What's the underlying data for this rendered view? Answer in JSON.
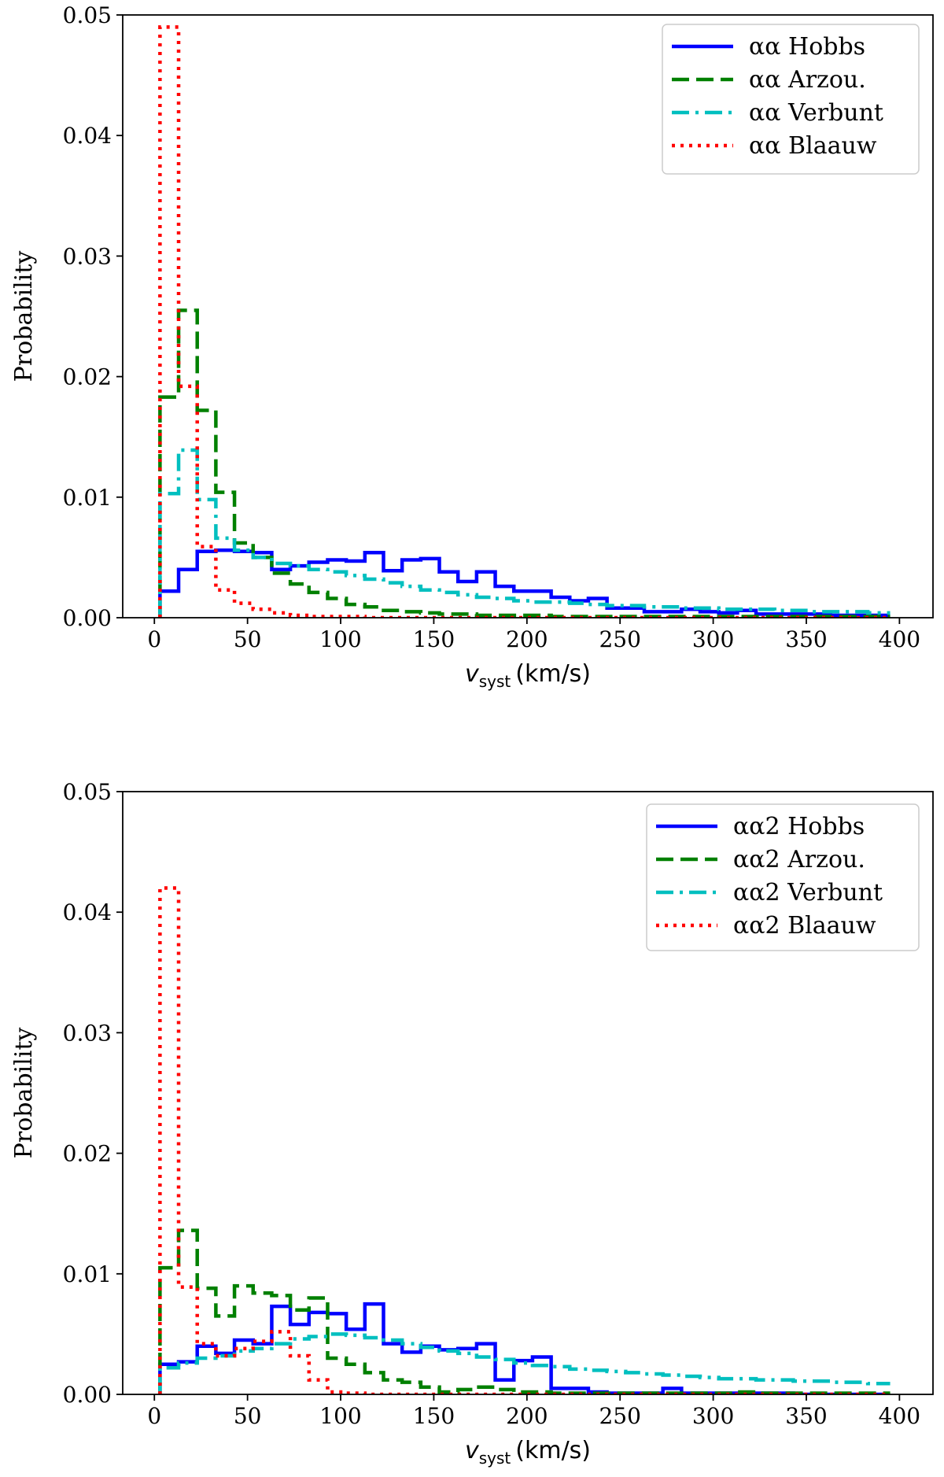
{
  "colors": {
    "hobbs": "#0000ff",
    "arzou": "#008000",
    "verbunt": "#00bfbf",
    "blaauw": "#ff0000"
  },
  "chart_data": [
    {
      "type": "histogram-step",
      "title": "",
      "xlabel": {
        "var": "v",
        "sub": "syst",
        "unit": "(km/s)"
      },
      "ylabel": "Probability",
      "xlim": [
        -17,
        418
      ],
      "ylim": [
        0,
        0.05
      ],
      "xticks": [
        0,
        50,
        100,
        150,
        200,
        250,
        300,
        350,
        400
      ],
      "yticks": [
        "0.00",
        "0.01",
        "0.02",
        "0.03",
        "0.04",
        "0.05"
      ],
      "legend_position": "top-right",
      "bin_edges": [
        3,
        13,
        23,
        33,
        43,
        53,
        63,
        73,
        83,
        93,
        103,
        113,
        123,
        133,
        143,
        153,
        163,
        173,
        183,
        193,
        203,
        213,
        223,
        233,
        243,
        253,
        263,
        273,
        283,
        293,
        303,
        313,
        323,
        333,
        343,
        353,
        363,
        373,
        383,
        395
      ],
      "series": [
        {
          "name": "αα Hobbs",
          "key": "hobbs",
          "style": "solid",
          "values": [
            0.0022,
            0.004,
            0.0055,
            0.0056,
            0.0055,
            0.0054,
            0.004,
            0.0043,
            0.0046,
            0.0048,
            0.0047,
            0.0054,
            0.0039,
            0.0048,
            0.0049,
            0.0038,
            0.003,
            0.0038,
            0.0026,
            0.0022,
            0.0022,
            0.0017,
            0.0014,
            0.0016,
            0.0008,
            0.0008,
            0.0005,
            0.0005,
            0.0007,
            0.0005,
            0.0004,
            0.0006,
            0.0003,
            0.0003,
            0.0003,
            0.0003,
            0.0002,
            0.0002,
            0.0002
          ]
        },
        {
          "name": "αα Arzou.",
          "key": "arzou",
          "style": "dashed",
          "values": [
            0.0183,
            0.0255,
            0.0172,
            0.0104,
            0.0062,
            0.005,
            0.0037,
            0.0028,
            0.0021,
            0.0016,
            0.0011,
            0.0009,
            0.0006,
            0.0005,
            0.0004,
            0.0003,
            0.0003,
            0.0002,
            0.0002,
            0.0002,
            0.0002,
            0.0001,
            0.0001,
            0.0001,
            0.0001,
            0.0001,
            0.0001,
            0.0001,
            0.0001,
            0.0001,
            0.0001,
            0.0001,
            0.0001,
            0.0001,
            0.0001,
            0.0001,
            0.0001,
            0.0001,
            0.0001
          ]
        },
        {
          "name": "αα Verbunt",
          "key": "verbunt",
          "style": "dashdot",
          "values": [
            0.0103,
            0.0139,
            0.0098,
            0.0066,
            0.0056,
            0.005,
            0.0045,
            0.0043,
            0.004,
            0.0038,
            0.0035,
            0.0032,
            0.0029,
            0.0026,
            0.0023,
            0.0021,
            0.0019,
            0.0017,
            0.0016,
            0.0014,
            0.0013,
            0.0013,
            0.0012,
            0.0011,
            0.001,
            0.001,
            0.0009,
            0.0009,
            0.0008,
            0.0008,
            0.0007,
            0.0007,
            0.0007,
            0.0006,
            0.0006,
            0.0005,
            0.0005,
            0.0005,
            0.0004
          ]
        },
        {
          "name": "αα Blaauw",
          "key": "blaauw",
          "style": "dotted",
          "values": [
            0.049,
            0.0192,
            0.0059,
            0.0023,
            0.0012,
            0.0007,
            0.0004,
            0.0002,
            0.0001,
            0.0001,
            0.0001,
            0.0,
            0.0,
            0.0,
            0.0,
            0.0,
            0.0,
            0.0,
            0.0,
            0.0,
            0.0,
            0.0,
            0.0,
            0.0,
            0.0,
            0.0,
            0.0,
            0.0,
            0.0,
            0.0,
            0.0,
            0.0,
            0.0,
            0.0,
            0.0,
            0.0,
            0.0,
            0.0,
            0.0
          ]
        }
      ]
    },
    {
      "type": "histogram-step",
      "title": "",
      "xlabel": {
        "var": "v",
        "sub": "syst",
        "unit": "(km/s)"
      },
      "ylabel": "Probability",
      "xlim": [
        -17,
        418
      ],
      "ylim": [
        0,
        0.05
      ],
      "xticks": [
        0,
        50,
        100,
        150,
        200,
        250,
        300,
        350,
        400
      ],
      "yticks": [
        "0.00",
        "0.01",
        "0.02",
        "0.03",
        "0.04",
        "0.05"
      ],
      "legend_position": "top-right",
      "bin_edges": [
        3,
        13,
        23,
        33,
        43,
        53,
        63,
        73,
        83,
        93,
        103,
        113,
        123,
        133,
        143,
        153,
        163,
        173,
        183,
        193,
        203,
        213,
        223,
        233,
        243,
        253,
        263,
        273,
        283,
        293,
        303,
        313,
        323,
        333,
        343,
        353,
        363,
        373,
        383,
        395
      ],
      "series": [
        {
          "name": "αα2 Hobbs",
          "key": "hobbs",
          "style": "solid",
          "values": [
            0.0025,
            0.0027,
            0.004,
            0.0034,
            0.0045,
            0.0042,
            0.0073,
            0.0058,
            0.0068,
            0.0067,
            0.0054,
            0.0075,
            0.0042,
            0.0035,
            0.004,
            0.0037,
            0.0038,
            0.0042,
            0.0012,
            0.0028,
            0.0031,
            0.0005,
            0.0005,
            0.0002,
            0.0001,
            0.0001,
            0.0001,
            0.0005,
            0.0001,
            0.0001,
            0.0001,
            0.0001,
            0.0001,
            0.0001,
            0.0,
            0.0,
            0.0,
            0.0,
            0.0
          ]
        },
        {
          "name": "αα2 Arzou.",
          "key": "arzou",
          "style": "dashed",
          "values": [
            0.0105,
            0.0136,
            0.0088,
            0.0065,
            0.009,
            0.0084,
            0.0082,
            0.007,
            0.008,
            0.003,
            0.0025,
            0.0018,
            0.0012,
            0.001,
            0.0006,
            0.0002,
            0.0004,
            0.0006,
            0.0004,
            0.0002,
            0.0002,
            0.0001,
            0.0001,
            0.0001,
            0.0001,
            0.0001,
            0.0001,
            0.0001,
            0.0001,
            0.0001,
            0.0001,
            0.0002,
            0.0001,
            0.0001,
            0.0001,
            0.0001,
            0.0001,
            0.0001,
            0.0001
          ]
        },
        {
          "name": "αα2 Verbunt",
          "key": "verbunt",
          "style": "dashdot",
          "values": [
            0.0022,
            0.0026,
            0.003,
            0.0032,
            0.0036,
            0.0038,
            0.0042,
            0.0046,
            0.0048,
            0.005,
            0.0049,
            0.0047,
            0.0045,
            0.0042,
            0.0039,
            0.0036,
            0.0034,
            0.0031,
            0.0029,
            0.0026,
            0.0024,
            0.0023,
            0.0021,
            0.002,
            0.0019,
            0.0018,
            0.0017,
            0.0016,
            0.0015,
            0.0014,
            0.0013,
            0.0013,
            0.0012,
            0.0012,
            0.0011,
            0.0011,
            0.001,
            0.001,
            0.0009
          ]
        },
        {
          "name": "αα2 Blaauw",
          "key": "blaauw",
          "style": "dotted",
          "values": [
            0.042,
            0.0089,
            0.0042,
            0.0032,
            0.0038,
            0.0044,
            0.0052,
            0.0032,
            0.0012,
            0.0002,
            0.0001,
            0.0,
            0.0,
            0.0,
            0.0,
            0.0,
            0.0,
            0.0,
            0.0,
            0.0,
            0.0,
            0.0,
            0.0,
            0.0,
            0.0,
            0.0,
            0.0,
            0.0,
            0.0,
            0.0,
            0.0,
            0.0,
            0.0,
            0.0,
            0.0,
            0.0,
            0.0,
            0.0,
            0.0
          ]
        }
      ]
    }
  ]
}
